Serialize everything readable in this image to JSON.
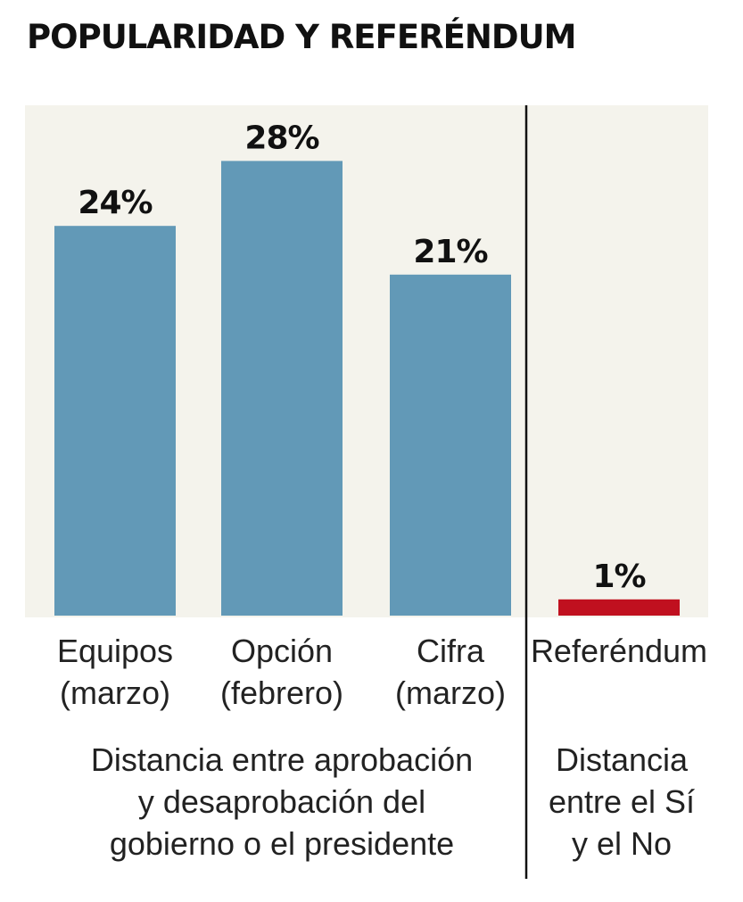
{
  "title": "POPULARIDAD Y REFERÉNDUM",
  "colors": {
    "panel_bg": "#f4f3ec",
    "bar_main": "#6299b7",
    "bar_referendum": "#c0101f",
    "divider": "#111111"
  },
  "chart_data": {
    "type": "bar",
    "title": "POPULARIDAD Y REFERÉNDUM",
    "unit": "%",
    "ylim": [
      0,
      30
    ],
    "grid": false,
    "groups": [
      {
        "note_lines": [
          "Distancia entre aprobación",
          "y desaprobación del",
          "gobierno o el presidente"
        ],
        "bars": [
          {
            "label_lines": [
              "Equipos",
              "(marzo)"
            ],
            "value": 24,
            "value_label": "24%"
          },
          {
            "label_lines": [
              "Opción",
              "(febrero)"
            ],
            "value": 28,
            "value_label": "28%"
          },
          {
            "label_lines": [
              "Cifra",
              "(marzo)"
            ],
            "value": 21,
            "value_label": "21%"
          }
        ]
      },
      {
        "note_lines": [
          "Distancia",
          "entre el Sí",
          "y el No"
        ],
        "bars": [
          {
            "label_lines": [
              "Referéndum"
            ],
            "value": 1,
            "value_label": "1%"
          }
        ]
      }
    ]
  }
}
